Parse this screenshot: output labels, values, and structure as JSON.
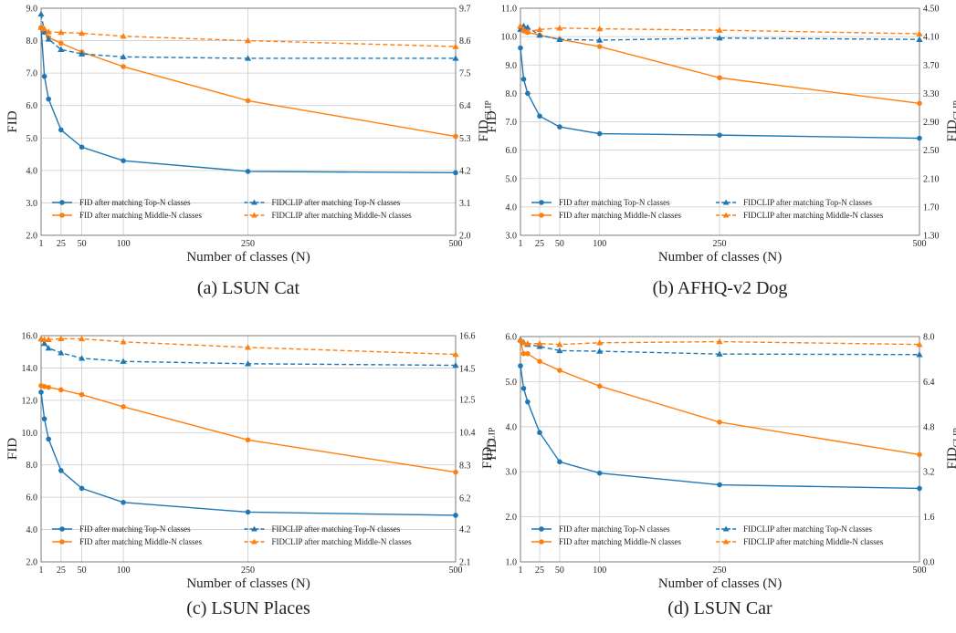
{
  "colors": {
    "top": "#1f77b4",
    "middle": "#ff7f0e",
    "grid": "#cccccc",
    "frame": "#666666"
  },
  "chart_data": [
    {
      "type": "line",
      "caption": "(a) LSUN Cat",
      "xlabel": "Number of classes (N)",
      "ylabel": "FID",
      "y2label": "FIDCLIP",
      "x": [
        1,
        5,
        10,
        25,
        50,
        100,
        250,
        500
      ],
      "xticks": [
        1,
        25,
        50,
        100,
        250,
        500
      ],
      "ylim": [
        2.0,
        9.0
      ],
      "yticks": [
        "2.0",
        "3.0",
        "4.0",
        "5.0",
        "6.0",
        "7.0",
        "8.0",
        "9.0"
      ],
      "y2lim": [
        2.0,
        9.7
      ],
      "y2ticks": [
        "2.0",
        "3.1",
        "4.2",
        "5.3",
        "6.4",
        "7.5",
        "8.6",
        "9.7"
      ],
      "grid": true,
      "series": [
        {
          "name": "FID after matching Top-N classes",
          "axis": "left",
          "dash": false,
          "marker": "circle",
          "color_key": "top",
          "values": [
            8.4,
            6.9,
            6.2,
            5.25,
            4.72,
            4.3,
            3.97,
            3.93
          ]
        },
        {
          "name": "FID after matching Middle-N classes",
          "axis": "left",
          "dash": false,
          "marker": "circle",
          "color_key": "middle",
          "values": [
            8.4,
            8.25,
            8.1,
            7.92,
            7.65,
            7.2,
            6.15,
            5.05
          ]
        },
        {
          "name": "FIDCLIP after matching Top-N classes",
          "axis": "right",
          "dash": true,
          "marker": "triangle",
          "color_key": "top",
          "values": [
            9.5,
            8.9,
            8.65,
            8.3,
            8.15,
            8.05,
            8.0,
            8.0
          ]
        },
        {
          "name": "FIDCLIP after matching Middle-N classes",
          "axis": "right",
          "dash": true,
          "marker": "triangle",
          "color_key": "middle",
          "values": [
            9.05,
            9.0,
            8.9,
            8.88,
            8.85,
            8.75,
            8.6,
            8.4
          ]
        }
      ],
      "legend": "bottom"
    },
    {
      "type": "line",
      "caption": "(b) AFHQ-v2 Dog",
      "xlabel": "Number of classes (N)",
      "ylabel": "FID",
      "y2label": "FIDCLIP",
      "x": [
        1,
        5,
        10,
        25,
        50,
        100,
        250,
        500
      ],
      "xticks": [
        1,
        25,
        50,
        100,
        250,
        500
      ],
      "ylim": [
        3.0,
        11.0
      ],
      "yticks": [
        "3.0",
        "4.0",
        "5.0",
        "6.0",
        "7.0",
        "8.0",
        "9.0",
        "10.0",
        "11.0"
      ],
      "y2lim": [
        1.3,
        4.5
      ],
      "y2ticks": [
        "1.30",
        "1.70",
        "2.10",
        "2.50",
        "2.90",
        "3.30",
        "3.70",
        "4.10",
        "4.50"
      ],
      "grid": true,
      "series": [
        {
          "name": "FID after matching Top-N classes",
          "axis": "left",
          "dash": false,
          "marker": "circle",
          "color_key": "top",
          "values": [
            9.6,
            8.5,
            8.0,
            7.2,
            6.82,
            6.58,
            6.53,
            6.42
          ]
        },
        {
          "name": "FID after matching Middle-N classes",
          "axis": "left",
          "dash": false,
          "marker": "circle",
          "color_key": "middle",
          "values": [
            10.3,
            10.2,
            10.15,
            10.05,
            9.9,
            9.65,
            8.55,
            7.65
          ]
        },
        {
          "name": "FIDCLIP after matching Top-N classes",
          "axis": "right",
          "dash": true,
          "marker": "triangle",
          "color_key": "top",
          "values": [
            4.2,
            4.25,
            4.23,
            4.12,
            4.06,
            4.05,
            4.08,
            4.06
          ]
        },
        {
          "name": "FIDCLIP after matching Middle-N classes",
          "axis": "right",
          "dash": true,
          "marker": "triangle",
          "color_key": "middle",
          "values": [
            4.25,
            4.2,
            4.17,
            4.2,
            4.22,
            4.21,
            4.19,
            4.14
          ]
        }
      ],
      "legend": "bottom"
    },
    {
      "type": "line",
      "caption": "(c) LSUN Places",
      "xlabel": "Number of classes (N)",
      "ylabel": "FID",
      "y2label": "FIDCLIP",
      "x": [
        1,
        5,
        10,
        25,
        50,
        100,
        250,
        500
      ],
      "xticks": [
        1,
        25,
        50,
        100,
        250,
        500
      ],
      "ylim": [
        2.0,
        16.0
      ],
      "yticks": [
        "2.0",
        "4.0",
        "6.0",
        "8.0",
        "10.0",
        "12.0",
        "14.0",
        "16.0"
      ],
      "y2lim": [
        2.1,
        16.6
      ],
      "y2ticks": [
        "2.1",
        "4.2",
        "6.2",
        "8.3",
        "10.4",
        "12.5",
        "14.5",
        "16.6"
      ],
      "grid": true,
      "series": [
        {
          "name": "FID after matching Top-N classes",
          "axis": "left",
          "dash": false,
          "marker": "circle",
          "color_key": "top",
          "values": [
            12.5,
            10.85,
            9.6,
            7.65,
            6.55,
            5.68,
            5.08,
            4.88
          ]
        },
        {
          "name": "FID after matching Middle-N classes",
          "axis": "left",
          "dash": false,
          "marker": "circle",
          "color_key": "middle",
          "values": [
            12.9,
            12.85,
            12.8,
            12.65,
            12.35,
            11.6,
            9.55,
            7.55
          ]
        },
        {
          "name": "FIDCLIP after matching Top-N classes",
          "axis": "right",
          "dash": true,
          "marker": "triangle",
          "color_key": "top",
          "values": [
            16.4,
            16.1,
            15.8,
            15.5,
            15.15,
            14.95,
            14.8,
            14.7
          ]
        },
        {
          "name": "FIDCLIP after matching Middle-N classes",
          "axis": "right",
          "dash": true,
          "marker": "triangle",
          "color_key": "middle",
          "values": [
            16.4,
            16.35,
            16.35,
            16.4,
            16.4,
            16.2,
            15.85,
            15.4
          ]
        }
      ],
      "legend": "bottom"
    },
    {
      "type": "line",
      "caption": "(d) LSUN Car",
      "xlabel": "Number of classes (N)",
      "ylabel": "FID",
      "y2label": "FIDCLIP",
      "x": [
        1,
        5,
        10,
        25,
        50,
        100,
        250,
        500
      ],
      "xticks": [
        1,
        25,
        50,
        100,
        250,
        500
      ],
      "ylim": [
        1.0,
        6.0
      ],
      "yticks": [
        "1.0",
        "2.0",
        "3.0",
        "4.0",
        "5.0",
        "6.0"
      ],
      "y2lim": [
        0.0,
        8.0
      ],
      "y2ticks": [
        "0.0",
        "1.6",
        "3.2",
        "4.8",
        "6.4",
        "8.0"
      ],
      "grid": true,
      "series": [
        {
          "name": "FID after matching Top-N classes",
          "axis": "left",
          "dash": false,
          "marker": "circle",
          "color_key": "top",
          "values": [
            5.35,
            4.85,
            4.55,
            3.87,
            3.22,
            2.97,
            2.71,
            2.63
          ]
        },
        {
          "name": "FID after matching Middle-N classes",
          "axis": "left",
          "dash": false,
          "marker": "circle",
          "color_key": "middle",
          "values": [
            5.9,
            5.62,
            5.62,
            5.45,
            5.25,
            4.9,
            4.1,
            3.38
          ]
        },
        {
          "name": "FIDCLIP after matching Top-N classes",
          "axis": "right",
          "dash": true,
          "marker": "triangle",
          "color_key": "top",
          "values": [
            7.9,
            7.8,
            7.72,
            7.65,
            7.5,
            7.48,
            7.38,
            7.36
          ]
        },
        {
          "name": "FIDCLIP after matching Middle-N classes",
          "axis": "right",
          "dash": true,
          "marker": "triangle",
          "color_key": "middle",
          "values": [
            7.88,
            7.78,
            7.75,
            7.75,
            7.72,
            7.78,
            7.82,
            7.72
          ]
        }
      ],
      "legend": "bottom"
    }
  ]
}
